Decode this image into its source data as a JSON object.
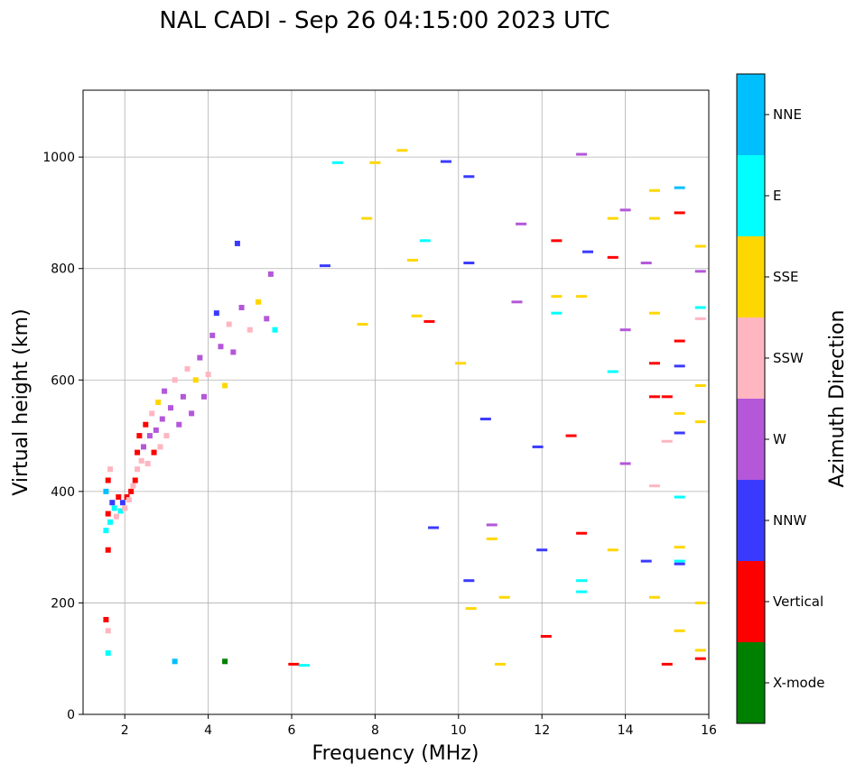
{
  "chart_data": {
    "type": "scatter",
    "title": "NAL CADI - Sep 26 04:15:00 2023 UTC",
    "xlabel": "Frequency (MHz)",
    "ylabel": "Virtual height (km)",
    "xlim": [
      1,
      16
    ],
    "ylim": [
      0,
      1120
    ],
    "xticks": [
      2,
      4,
      6,
      8,
      10,
      12,
      14,
      16
    ],
    "yticks": [
      0,
      200,
      400,
      600,
      800,
      1000
    ],
    "grid": true,
    "colorbar": {
      "label": "Azimuth Direction",
      "categories": [
        "X-mode",
        "Vertical",
        "NNW",
        "W",
        "SSW",
        "SSE",
        "E",
        "NNE"
      ],
      "colors": [
        "#008000",
        "#ff0000",
        "#3a3aff",
        "#b457d9",
        "#ffb6c1",
        "#ffd700",
        "#00ffff",
        "#00bfff"
      ]
    },
    "trace_points": [
      [
        1.55,
        330,
        "E"
      ],
      [
        1.6,
        360,
        "Vertical"
      ],
      [
        1.65,
        345,
        "E"
      ],
      [
        1.7,
        380,
        "NNW"
      ],
      [
        1.55,
        400,
        "NNE"
      ],
      [
        1.6,
        420,
        "Vertical"
      ],
      [
        1.65,
        440,
        "SSW"
      ],
      [
        1.75,
        370,
        "E"
      ],
      [
        1.8,
        355,
        "SSW"
      ],
      [
        1.85,
        390,
        "Vertical"
      ],
      [
        1.9,
        365,
        "E"
      ],
      [
        1.95,
        380,
        "NNW"
      ],
      [
        2.0,
        370,
        "SSW"
      ],
      [
        2.05,
        390,
        "Vertical"
      ],
      [
        2.1,
        385,
        "SSW"
      ],
      [
        2.15,
        400,
        "Vertical"
      ],
      [
        2.2,
        410,
        "SSW"
      ],
      [
        2.25,
        420,
        "Vertical"
      ],
      [
        2.3,
        440,
        "SSW"
      ],
      [
        2.3,
        470,
        "Vertical"
      ],
      [
        2.35,
        500,
        "Vertical"
      ],
      [
        2.4,
        455,
        "SSW"
      ],
      [
        2.45,
        480,
        "W"
      ],
      [
        2.5,
        520,
        "Vertical"
      ],
      [
        2.55,
        450,
        "SSW"
      ],
      [
        2.6,
        500,
        "W"
      ],
      [
        2.65,
        540,
        "SSW"
      ],
      [
        2.7,
        470,
        "Vertical"
      ],
      [
        2.75,
        510,
        "W"
      ],
      [
        2.8,
        560,
        "SSE"
      ],
      [
        2.85,
        480,
        "SSW"
      ],
      [
        2.9,
        530,
        "W"
      ],
      [
        2.95,
        580,
        "W"
      ],
      [
        3.0,
        500,
        "SSW"
      ],
      [
        3.1,
        550,
        "W"
      ],
      [
        3.2,
        600,
        "SSW"
      ],
      [
        3.3,
        520,
        "W"
      ],
      [
        3.4,
        570,
        "W"
      ],
      [
        3.5,
        620,
        "SSW"
      ],
      [
        3.6,
        540,
        "W"
      ],
      [
        3.7,
        600,
        "SSE"
      ],
      [
        3.8,
        640,
        "W"
      ],
      [
        3.9,
        570,
        "W"
      ],
      [
        4.0,
        610,
        "SSW"
      ],
      [
        4.1,
        680,
        "W"
      ],
      [
        4.2,
        720,
        "NNW"
      ],
      [
        4.3,
        660,
        "W"
      ],
      [
        4.4,
        590,
        "SSE"
      ],
      [
        4.5,
        700,
        "SSW"
      ],
      [
        4.6,
        650,
        "W"
      ],
      [
        4.8,
        730,
        "W"
      ],
      [
        5.0,
        690,
        "SSW"
      ],
      [
        5.2,
        740,
        "SSE"
      ],
      [
        5.4,
        710,
        "W"
      ],
      [
        5.5,
        790,
        "W"
      ],
      [
        5.6,
        690,
        "E"
      ],
      [
        4.7,
        845,
        "NNW"
      ],
      [
        3.2,
        95,
        "NNE"
      ],
      [
        4.4,
        95,
        "X-mode"
      ],
      [
        1.55,
        170,
        "Vertical"
      ],
      [
        1.6,
        110,
        "E"
      ],
      [
        1.6,
        150,
        "SSW"
      ],
      [
        1.6,
        295,
        "Vertical"
      ]
    ],
    "scatter_points": [
      [
        6.05,
        90,
        "Vertical"
      ],
      [
        6.3,
        88,
        "E"
      ],
      [
        6.8,
        805,
        "NNW"
      ],
      [
        7.1,
        990,
        "E"
      ],
      [
        7.7,
        700,
        "SSE"
      ],
      [
        7.8,
        890,
        "SSE"
      ],
      [
        8.0,
        990,
        "SSE"
      ],
      [
        8.65,
        1012,
        "SSE"
      ],
      [
        8.9,
        815,
        "SSE"
      ],
      [
        9.0,
        715,
        "SSE"
      ],
      [
        9.2,
        850,
        "E"
      ],
      [
        9.3,
        705,
        "Vertical"
      ],
      [
        9.7,
        992,
        "NNW"
      ],
      [
        9.4,
        335,
        "NNW"
      ],
      [
        10.05,
        630,
        "SSE"
      ],
      [
        10.25,
        965,
        "NNW"
      ],
      [
        10.25,
        810,
        "NNW"
      ],
      [
        10.25,
        240,
        "NNW"
      ],
      [
        10.3,
        190,
        "SSE"
      ],
      [
        10.65,
        530,
        "NNW"
      ],
      [
        10.8,
        340,
        "W"
      ],
      [
        10.8,
        315,
        "SSE"
      ],
      [
        11.0,
        90,
        "SSE"
      ],
      [
        11.1,
        210,
        "SSE"
      ],
      [
        11.4,
        740,
        "W"
      ],
      [
        11.5,
        880,
        "W"
      ],
      [
        11.9,
        480,
        "NNW"
      ],
      [
        12.0,
        295,
        "NNW"
      ],
      [
        12.1,
        140,
        "Vertical"
      ],
      [
        12.35,
        850,
        "Vertical"
      ],
      [
        12.35,
        750,
        "SSE"
      ],
      [
        12.35,
        720,
        "E"
      ],
      [
        12.7,
        500,
        "Vertical"
      ],
      [
        12.95,
        1005,
        "W"
      ],
      [
        12.95,
        750,
        "SSE"
      ],
      [
        12.95,
        325,
        "Vertical"
      ],
      [
        12.95,
        240,
        "E"
      ],
      [
        12.95,
        220,
        "E"
      ],
      [
        13.1,
        830,
        "NNW"
      ],
      [
        13.7,
        890,
        "SSE"
      ],
      [
        13.7,
        820,
        "Vertical"
      ],
      [
        13.7,
        615,
        "E"
      ],
      [
        13.7,
        295,
        "SSE"
      ],
      [
        14.0,
        905,
        "W"
      ],
      [
        14.0,
        690,
        "W"
      ],
      [
        14.0,
        450,
        "W"
      ],
      [
        14.5,
        810,
        "W"
      ],
      [
        14.5,
        275,
        "NNW"
      ],
      [
        14.7,
        940,
        "SSE"
      ],
      [
        14.7,
        890,
        "SSE"
      ],
      [
        14.7,
        720,
        "SSE"
      ],
      [
        14.7,
        630,
        "Vertical"
      ],
      [
        14.7,
        570,
        "Vertical"
      ],
      [
        14.7,
        410,
        "SSW"
      ],
      [
        14.7,
        210,
        "SSE"
      ],
      [
        15.0,
        570,
        "Vertical"
      ],
      [
        15.0,
        490,
        "SSW"
      ],
      [
        15.0,
        90,
        "Vertical"
      ],
      [
        15.3,
        945,
        "NNE"
      ],
      [
        15.3,
        900,
        "Vertical"
      ],
      [
        15.3,
        670,
        "Vertical"
      ],
      [
        15.3,
        625,
        "NNW"
      ],
      [
        15.3,
        540,
        "SSE"
      ],
      [
        15.3,
        505,
        "NNW"
      ],
      [
        15.3,
        390,
        "E"
      ],
      [
        15.3,
        300,
        "SSE"
      ],
      [
        15.3,
        275,
        "E"
      ],
      [
        15.3,
        270,
        "NNW"
      ],
      [
        15.3,
        150,
        "SSE"
      ],
      [
        15.8,
        840,
        "SSE"
      ],
      [
        15.8,
        795,
        "W"
      ],
      [
        15.8,
        730,
        "E"
      ],
      [
        15.8,
        710,
        "SSW"
      ],
      [
        15.8,
        590,
        "SSE"
      ],
      [
        15.8,
        525,
        "SSE"
      ],
      [
        15.8,
        200,
        "SSE"
      ],
      [
        15.8,
        115,
        "SSE"
      ],
      [
        15.8,
        100,
        "Vertical"
      ]
    ]
  }
}
